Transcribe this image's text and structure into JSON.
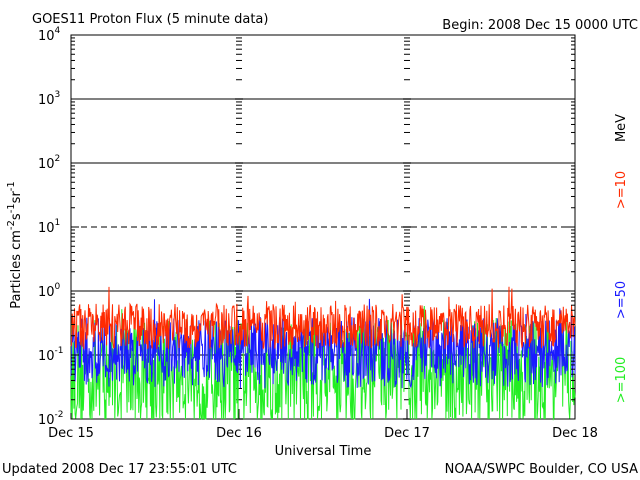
{
  "chart_data": {
    "type": "line",
    "title": "GOES11 Proton Flux (5 minute data)",
    "begin_label": "Begin: 2008 Dec 15 0000 UTC",
    "ylabel": {
      "base": "Particles cm",
      "e1": "-2",
      "s": "s",
      "e2": "-1",
      "sr": "sr",
      "e3": "-1"
    },
    "xlabel": "Universal Time",
    "yscale": "log",
    "ylim": [
      0.01,
      10000
    ],
    "y_ticks": [
      {
        "exp": "-2",
        "value": 0.01
      },
      {
        "exp": "-1",
        "value": 0.1
      },
      {
        "exp": "0",
        "value": 1
      },
      {
        "exp": "1",
        "value": 10
      },
      {
        "exp": "2",
        "value": 100
      },
      {
        "exp": "3",
        "value": 1000
      },
      {
        "exp": "4",
        "value": 10000
      }
    ],
    "threshold_lines": [
      {
        "value": 10,
        "style": "dashed"
      },
      {
        "value": 1,
        "style": "solid"
      },
      {
        "value": 0.1,
        "style": "solid"
      },
      {
        "value": 100,
        "style": "solid"
      },
      {
        "value": 1000,
        "style": "solid"
      }
    ],
    "x_ticks": [
      "Dec 15",
      "Dec 16",
      "Dec 17",
      "Dec 18"
    ],
    "xlim_days": [
      0,
      3
    ],
    "unit_label": "MeV",
    "series": [
      {
        "name": ">=10",
        "color": "#ff2a00",
        "baseline": 0.28,
        "spread": 0.22
      },
      {
        "name": ">=50",
        "color": "#1a1aff",
        "baseline": 0.11,
        "spread": 0.35
      },
      {
        "name": ">=100",
        "color": "#22ee22",
        "baseline": 0.05,
        "spread": 0.55
      }
    ],
    "grid": false,
    "legend": "right-vertical"
  },
  "footer": {
    "updated": "Updated 2008 Dec 17 23:55:01 UTC",
    "source": "NOAA/SWPC Boulder, CO USA"
  }
}
